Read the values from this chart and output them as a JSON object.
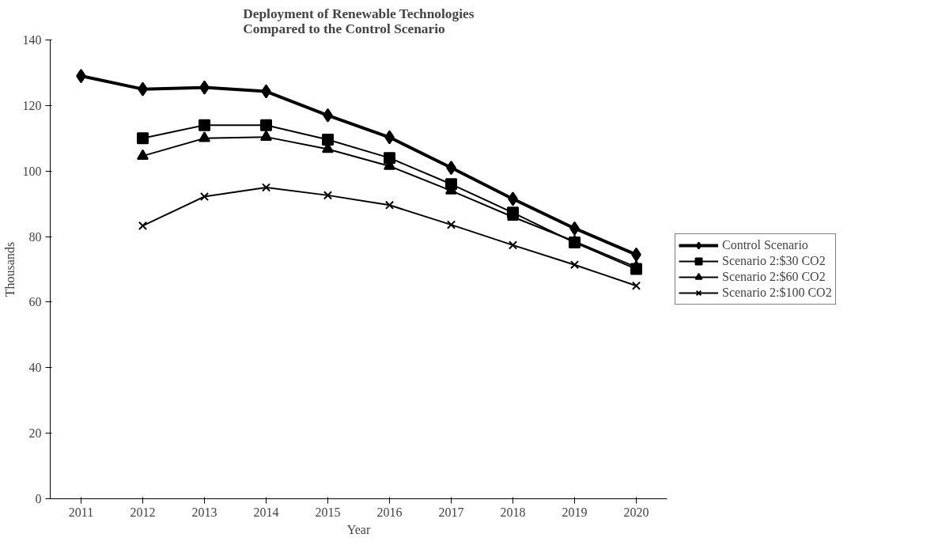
{
  "chart_data": {
    "type": "line",
    "title": "Deployment of Renewable Technologies\nCompared to the Control Scenario",
    "xlabel": "Year",
    "ylabel": "Thousands",
    "categories": [
      "2011",
      "2012",
      "2013",
      "2014",
      "2015",
      "2016",
      "2017",
      "2018",
      "2019",
      "2020"
    ],
    "series": [
      {
        "name": "Control Scenario",
        "color": "#000000",
        "marker": "diamond",
        "values": [
          129,
          125,
          125.5,
          124.3,
          117,
          110.3,
          101,
          91.5,
          82.5,
          74.5
        ]
      },
      {
        "name": "Scenario 2:$30 CO2",
        "color": "#000000",
        "marker": "square",
        "values": [
          null,
          110,
          114,
          114,
          109.6,
          104,
          96,
          87.3,
          78.2,
          70.1
        ]
      },
      {
        "name": "Scenario 2:$60 CO2",
        "color": "#000000",
        "marker": "triangle",
        "values": [
          null,
          104.6,
          110,
          110.4,
          106.7,
          101.5,
          94,
          86,
          78.5,
          70.7
        ]
      },
      {
        "name": "Scenario 2:$100 CO2",
        "color": "#000000",
        "marker": "cross",
        "values": [
          null,
          83.3,
          92.2,
          95,
          92.6,
          89.6,
          83.6,
          77.4,
          71.4,
          65
        ]
      }
    ],
    "ylim": [
      0,
      140
    ],
    "yticks": [
      0,
      20,
      40,
      60,
      80,
      100,
      120,
      140
    ],
    "grid": false,
    "legend": "right",
    "line_style": "solid"
  }
}
